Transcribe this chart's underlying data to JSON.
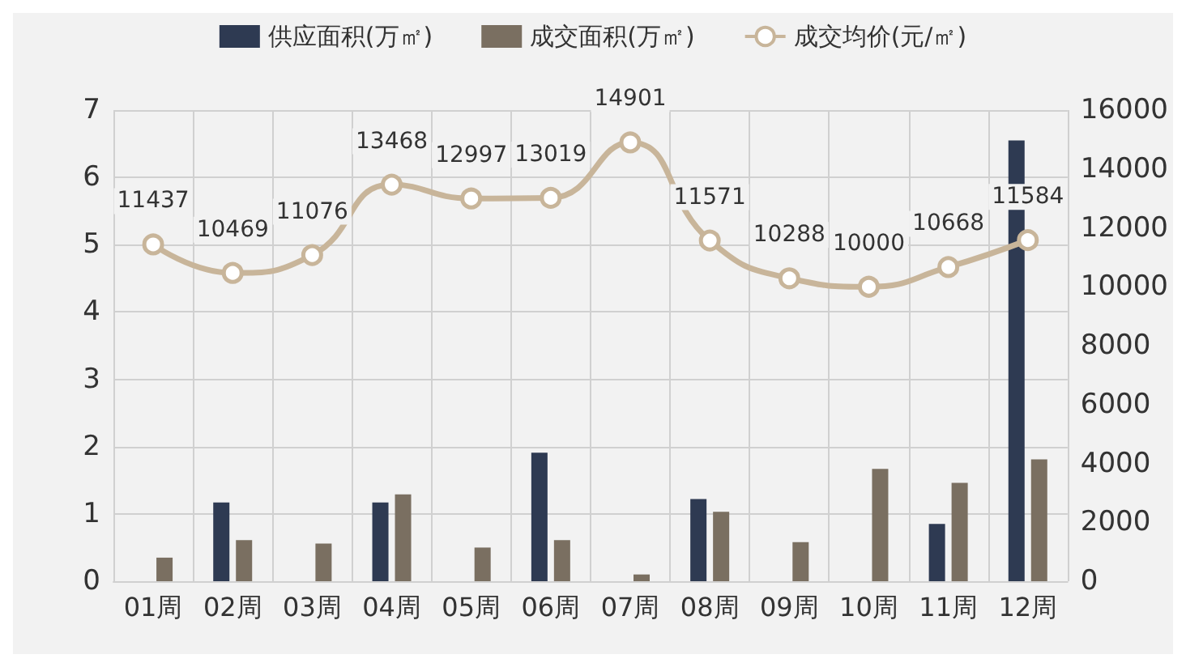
{
  "chart_data": {
    "type": "bar",
    "categories": [
      "01周",
      "02周",
      "03周",
      "04周",
      "05周",
      "06周",
      "07周",
      "08周",
      "09周",
      "10周",
      "11周",
      "12周"
    ],
    "series": [
      {
        "name": "供应面积(万㎡)",
        "color": "#2e3a52",
        "values": [
          null,
          1.17,
          null,
          1.17,
          null,
          1.91,
          null,
          1.22,
          null,
          null,
          0.85,
          6.55
        ]
      },
      {
        "name": "成交面积(万㎡)",
        "color": "#7a6f61",
        "values": [
          0.35,
          0.61,
          0.56,
          1.29,
          0.5,
          0.61,
          0.1,
          1.03,
          0.58,
          1.67,
          1.46,
          1.81
        ]
      },
      {
        "name": "成交均价(元/㎡)",
        "type": "line",
        "axis": "y2",
        "color": "#c8b59a",
        "marker": "circle",
        "values": [
          11437,
          10469,
          11076,
          13468,
          12997,
          13019,
          14901,
          11571,
          10288,
          10000,
          10668,
          11584
        ],
        "value_labels": [
          "11437",
          "10469",
          "11076",
          "13468",
          "12997",
          "13019",
          "14901",
          "11571",
          "10288",
          "10000",
          "10668",
          "11584"
        ]
      }
    ],
    "ylim": [
      0,
      7
    ],
    "yticks": [
      0,
      1,
      2,
      3,
      4,
      5,
      6,
      7
    ],
    "y2lim": [
      0,
      16000
    ],
    "y2ticks": [
      0,
      2000,
      4000,
      6000,
      8000,
      10000,
      12000,
      14000,
      16000
    ],
    "grid": true,
    "legend": "top"
  }
}
